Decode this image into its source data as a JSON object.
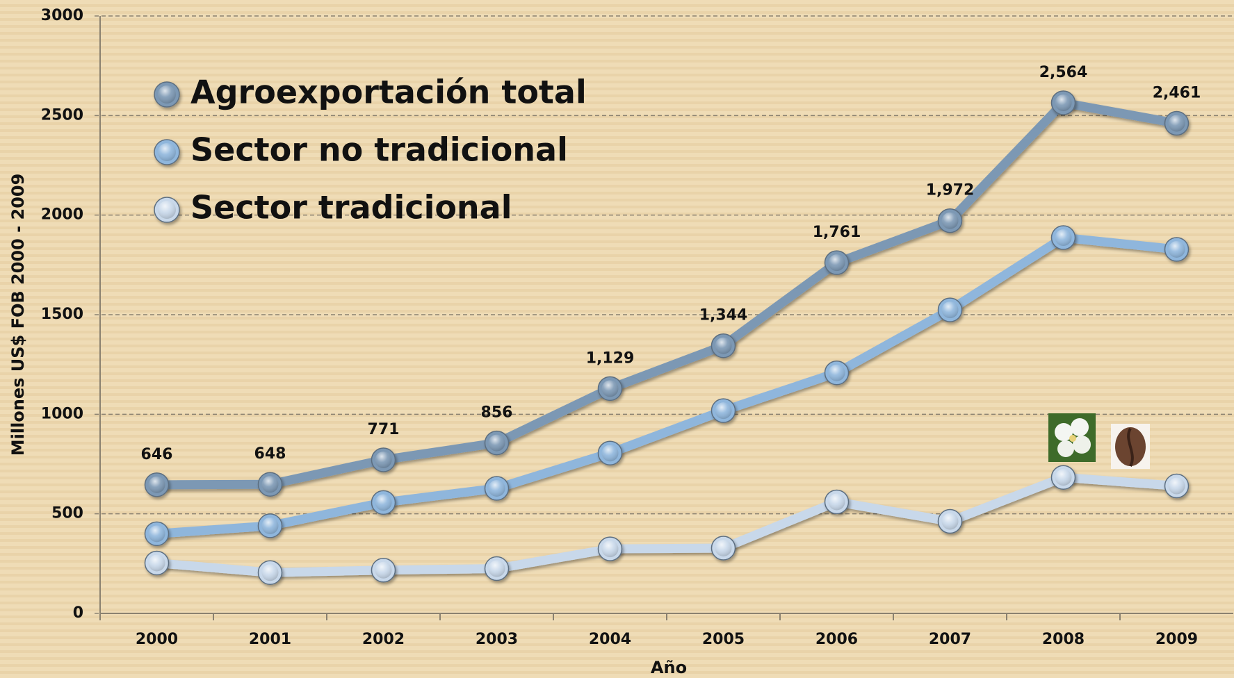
{
  "chart_data": {
    "type": "line",
    "x_label": "Año",
    "y_label": "Millones  US$ FOB 2000 - 2009",
    "categories": [
      "2000",
      "2001",
      "2002",
      "2003",
      "2004",
      "2005",
      "2006",
      "2007",
      "2008",
      "2009"
    ],
    "series": [
      {
        "name": "Agroexportación total",
        "color": "#7b98b4",
        "values": [
          646,
          648,
          771,
          856,
          1129,
          1344,
          1761,
          1972,
          2564,
          2461
        ],
        "value_labels": [
          "646",
          "648",
          "771",
          "856",
          "1,129",
          "1,344",
          "1,761",
          "1,972",
          "2,564",
          "2,461"
        ]
      },
      {
        "name": "Sector no tradicional",
        "color": "#8fb6dc",
        "values": [
          400,
          440,
          557,
          628,
          805,
          1018,
          1208,
          1524,
          1887,
          1828
        ]
      },
      {
        "name": "Sector tradicional",
        "color": "#c8d8ea",
        "values": [
          253,
          205,
          217,
          225,
          324,
          328,
          560,
          462,
          683,
          640
        ]
      }
    ],
    "ylim": [
      0,
      3000
    ],
    "yticks": [
      0,
      500,
      1000,
      1500,
      2000,
      2500,
      3000
    ],
    "grid": true,
    "legend": "upper left"
  }
}
